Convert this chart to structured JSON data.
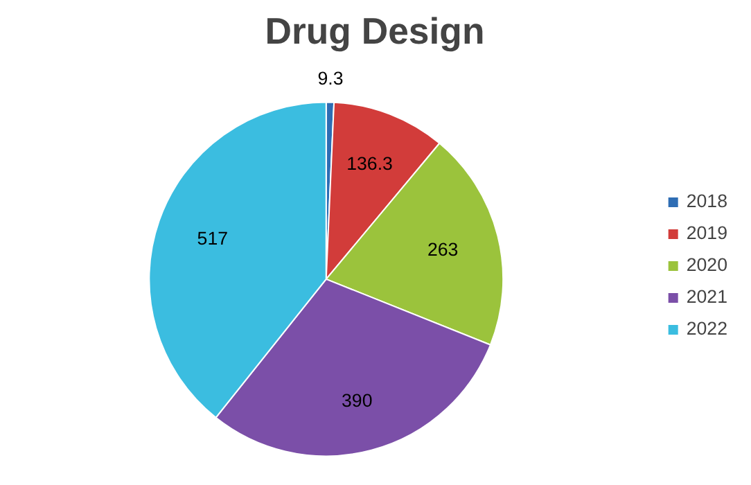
{
  "chart_data": {
    "type": "pie",
    "title": "Drug Design",
    "categories": [
      "2018",
      "2019",
      "2020",
      "2021",
      "2022"
    ],
    "values": [
      9.3,
      136.3,
      263,
      390,
      517
    ],
    "colors": [
      "#2e6db4",
      "#d23c3a",
      "#9bc33c",
      "#7b4fa8",
      "#3bbde0"
    ],
    "data_labels": true,
    "legend": "right"
  }
}
